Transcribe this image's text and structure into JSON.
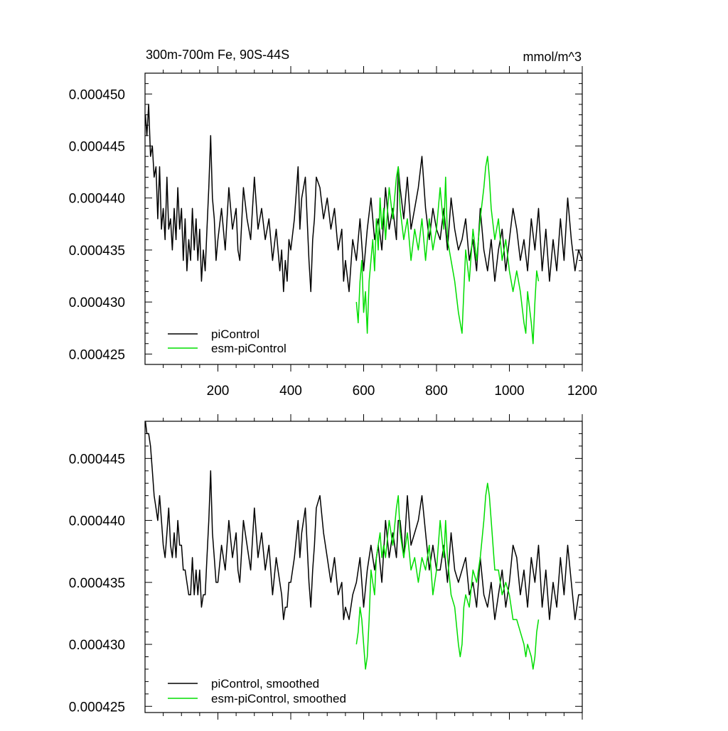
{
  "chart_data": [
    {
      "type": "line",
      "title": "300m-700m Fe, 90S-44S",
      "units_label": "mmol/m^3",
      "xlim": [
        0,
        1200
      ],
      "ylim": [
        0.000424,
        0.000452
      ],
      "x_ticks": [
        200,
        400,
        600,
        800,
        1000,
        1200
      ],
      "x_tick_labels": [
        "200",
        "400",
        "600",
        "800",
        "1000",
        "1200"
      ],
      "y_ticks": [
        0.000425,
        0.00043,
        0.000435,
        0.00044,
        0.000445,
        0.00045
      ],
      "y_tick_labels": [
        "0.000425",
        "0.000430",
        "0.000435",
        "0.000440",
        "0.000445",
        "0.000450"
      ],
      "legend_position": "bottom-left",
      "series": [
        {
          "name": "piControl",
          "color": "#000000",
          "x": [
            1,
            5,
            10,
            15,
            20,
            25,
            30,
            35,
            40,
            45,
            50,
            55,
            60,
            65,
            70,
            75,
            80,
            85,
            90,
            95,
            100,
            105,
            110,
            115,
            120,
            125,
            130,
            135,
            140,
            145,
            150,
            155,
            160,
            165,
            170,
            175,
            180,
            185,
            190,
            195,
            200,
            210,
            220,
            230,
            240,
            250,
            255,
            260,
            270,
            280,
            290,
            300,
            310,
            320,
            330,
            340,
            350,
            360,
            370,
            375,
            380,
            385,
            390,
            395,
            400,
            410,
            420,
            425,
            430,
            440,
            450,
            455,
            460,
            465,
            470,
            480,
            490,
            500,
            510,
            520,
            530,
            540,
            545,
            550,
            560,
            570,
            580,
            590,
            600,
            610,
            620,
            630,
            640,
            650,
            660,
            670,
            680,
            690,
            695,
            700,
            710,
            720,
            730,
            740,
            750,
            760,
            770,
            780,
            790,
            800,
            810,
            820,
            830,
            840,
            850,
            860,
            870,
            880,
            890,
            900,
            910,
            920,
            930,
            940,
            950,
            960,
            970,
            980,
            990,
            1000,
            1010,
            1020,
            1030,
            1040,
            1050,
            1060,
            1070,
            1080,
            1090,
            1100,
            1110,
            1120,
            1130,
            1140,
            1150,
            1160,
            1170,
            1180,
            1190,
            1200
          ],
          "y": [
            0.000448,
            0.000446,
            0.000449,
            0.000444,
            0.000445,
            0.000442,
            0.000443,
            0.000438,
            0.000443,
            0.000437,
            0.000439,
            0.000436,
            0.000442,
            0.000437,
            0.000438,
            0.000435,
            0.000439,
            0.000436,
            0.000441,
            0.000437,
            0.000439,
            0.000434,
            0.000438,
            0.000433,
            0.000436,
            0.000434,
            0.000439,
            0.000435,
            0.000438,
            0.000434,
            0.000437,
            0.000432,
            0.000435,
            0.000433,
            0.000437,
            0.000441,
            0.000446,
            0.00044,
            0.000438,
            0.000434,
            0.000436,
            0.000439,
            0.000435,
            0.000441,
            0.000437,
            0.000439,
            0.000435,
            0.000434,
            0.000441,
            0.000438,
            0.000436,
            0.000442,
            0.000437,
            0.000439,
            0.000436,
            0.000438,
            0.000434,
            0.000437,
            0.000433,
            0.000435,
            0.000431,
            0.000434,
            0.000432,
            0.000436,
            0.000435,
            0.000438,
            0.000443,
            0.000437,
            0.00044,
            0.000442,
            0.000434,
            0.000431,
            0.000436,
            0.000438,
            0.000442,
            0.000441,
            0.000438,
            0.00044,
            0.000437,
            0.000439,
            0.000435,
            0.000437,
            0.000432,
            0.000434,
            0.000431,
            0.000436,
            0.000434,
            0.000438,
            0.000433,
            0.000437,
            0.00044,
            0.000436,
            0.000438,
            0.000435,
            0.000441,
            0.000437,
            0.000439,
            0.000436,
            0.000443,
            0.000441,
            0.000438,
            0.000442,
            0.000437,
            0.000439,
            0.000441,
            0.000444,
            0.000439,
            0.000436,
            0.000439,
            0.000437,
            0.000436,
            0.000439,
            0.000435,
            0.00044,
            0.000437,
            0.000435,
            0.000436,
            0.000438,
            0.000434,
            0.000436,
            0.000433,
            0.000439,
            0.000435,
            0.000433,
            0.000436,
            0.000432,
            0.000435,
            0.000437,
            0.000433,
            0.000436,
            0.000439,
            0.000437,
            0.000434,
            0.000436,
            0.000433,
            0.000438,
            0.000435,
            0.000439,
            0.000433,
            0.000437,
            0.000432,
            0.000436,
            0.000433,
            0.000438,
            0.000434,
            0.00044,
            0.000436,
            0.000433,
            0.000435,
            0.000434
          ]
        },
        {
          "name": "esm-piControl",
          "color": "#00dd00",
          "x": [
            580,
            585,
            590,
            595,
            600,
            605,
            610,
            615,
            620,
            625,
            630,
            635,
            640,
            645,
            650,
            655,
            660,
            670,
            680,
            690,
            695,
            700,
            710,
            720,
            730,
            740,
            750,
            760,
            770,
            780,
            790,
            800,
            810,
            820,
            825,
            830,
            840,
            850,
            860,
            865,
            870,
            875,
            880,
            890,
            900,
            910,
            920,
            930,
            935,
            940,
            945,
            950,
            960,
            970,
            980,
            990,
            1000,
            1010,
            1020,
            1030,
            1040,
            1045,
            1050,
            1060,
            1065,
            1070,
            1075,
            1080
          ],
          "y": [
            0.00043,
            0.000428,
            0.000432,
            0.000434,
            0.000429,
            0.000431,
            0.000427,
            0.000432,
            0.000434,
            0.000436,
            0.000433,
            0.000438,
            0.000435,
            0.00044,
            0.000437,
            0.000439,
            0.000436,
            0.000441,
            0.000438,
            0.000442,
            0.000443,
            0.000439,
            0.000436,
            0.000438,
            0.000434,
            0.000437,
            0.000435,
            0.000438,
            0.000434,
            0.000438,
            0.000435,
            0.000437,
            0.000441,
            0.000437,
            0.000442,
            0.000436,
            0.000434,
            0.000432,
            0.000429,
            0.000428,
            0.000427,
            0.000431,
            0.000435,
            0.000432,
            0.000437,
            0.000434,
            0.000438,
            0.000441,
            0.000443,
            0.000444,
            0.000442,
            0.000439,
            0.000436,
            0.000438,
            0.000434,
            0.000436,
            0.000433,
            0.000431,
            0.000433,
            0.000431,
            0.000428,
            0.000427,
            0.000431,
            0.000428,
            0.000426,
            0.00043,
            0.000433,
            0.000432
          ]
        }
      ]
    },
    {
      "type": "line",
      "xlim": [
        0,
        1200
      ],
      "ylim": [
        0.0004245,
        0.000448
      ],
      "x_ticks": [
        200,
        400,
        600,
        800,
        1000,
        1200
      ],
      "y_ticks": [
        0.000425,
        0.00043,
        0.000435,
        0.00044,
        0.000445
      ],
      "y_tick_labels": [
        "0.000425",
        "0.000430",
        "0.000435",
        "0.000440",
        "0.000445"
      ],
      "legend_position": "bottom-left",
      "series": [
        {
          "name": "piControl, smoothed",
          "color": "#000000",
          "x": [
            1,
            5,
            10,
            15,
            20,
            25,
            30,
            35,
            40,
            45,
            50,
            55,
            60,
            65,
            70,
            75,
            80,
            85,
            90,
            95,
            100,
            105,
            110,
            115,
            120,
            125,
            130,
            135,
            140,
            145,
            150,
            155,
            160,
            165,
            170,
            175,
            180,
            185,
            190,
            195,
            200,
            210,
            220,
            230,
            240,
            250,
            255,
            260,
            270,
            280,
            290,
            300,
            310,
            320,
            330,
            340,
            350,
            360,
            370,
            375,
            380,
            385,
            390,
            395,
            400,
            410,
            420,
            425,
            430,
            440,
            450,
            455,
            460,
            465,
            470,
            480,
            490,
            500,
            510,
            520,
            530,
            540,
            545,
            550,
            560,
            570,
            580,
            590,
            600,
            610,
            620,
            630,
            640,
            650,
            660,
            670,
            680,
            690,
            695,
            700,
            710,
            720,
            730,
            740,
            750,
            760,
            770,
            780,
            790,
            800,
            810,
            820,
            830,
            840,
            850,
            860,
            870,
            880,
            890,
            900,
            910,
            920,
            930,
            940,
            950,
            960,
            970,
            980,
            990,
            1000,
            1010,
            1020,
            1030,
            1040,
            1050,
            1060,
            1070,
            1080,
            1090,
            1100,
            1110,
            1120,
            1130,
            1140,
            1150,
            1160,
            1170,
            1180,
            1190,
            1200
          ],
          "y": [
            0.000448,
            0.000447,
            0.000447,
            0.000446,
            0.000444,
            0.000442,
            0.000441,
            0.00044,
            0.000442,
            0.00044,
            0.000438,
            0.000437,
            0.000439,
            0.000441,
            0.000438,
            0.000437,
            0.000439,
            0.000437,
            0.00044,
            0.000438,
            0.000438,
            0.000436,
            0.000436,
            0.000435,
            0.000434,
            0.000434,
            0.000437,
            0.000434,
            0.000436,
            0.000434,
            0.000436,
            0.000433,
            0.000434,
            0.000434,
            0.000437,
            0.00044,
            0.000444,
            0.000439,
            0.000437,
            0.000435,
            0.000435,
            0.000438,
            0.000436,
            0.00044,
            0.000437,
            0.000439,
            0.000436,
            0.000435,
            0.00044,
            0.000438,
            0.000436,
            0.000441,
            0.000437,
            0.000439,
            0.000436,
            0.000438,
            0.000434,
            0.000437,
            0.000435,
            0.000434,
            0.000432,
            0.000433,
            0.000433,
            0.000435,
            0.000435,
            0.000437,
            0.00044,
            0.000437,
            0.000439,
            0.000441,
            0.000435,
            0.000433,
            0.000436,
            0.000438,
            0.000441,
            0.000442,
            0.000439,
            0.000437,
            0.000435,
            0.000437,
            0.000434,
            0.000435,
            0.000432,
            0.000433,
            0.000432,
            0.000434,
            0.000435,
            0.000437,
            0.000433,
            0.000436,
            0.000438,
            0.000436,
            0.000438,
            0.000435,
            0.00044,
            0.000437,
            0.000439,
            0.000437,
            0.00044,
            0.00044,
            0.000437,
            0.000442,
            0.000438,
            0.000439,
            0.00044,
            0.000442,
            0.000439,
            0.000436,
            0.000438,
            0.000436,
            0.000436,
            0.000438,
            0.000435,
            0.000439,
            0.000436,
            0.000435,
            0.000436,
            0.000437,
            0.000434,
            0.000435,
            0.000433,
            0.000437,
            0.000434,
            0.000433,
            0.000435,
            0.000432,
            0.000434,
            0.000436,
            0.000433,
            0.000435,
            0.000438,
            0.000437,
            0.000434,
            0.000436,
            0.000433,
            0.000437,
            0.000435,
            0.000438,
            0.000433,
            0.000436,
            0.000432,
            0.000435,
            0.000433,
            0.000437,
            0.000434,
            0.000438,
            0.000435,
            0.000432,
            0.000434,
            0.000434
          ]
        },
        {
          "name": "esm-piControl, smoothed",
          "color": "#00dd00",
          "x": [
            580,
            585,
            590,
            595,
            600,
            605,
            610,
            615,
            620,
            625,
            630,
            635,
            640,
            645,
            650,
            655,
            660,
            670,
            680,
            690,
            695,
            700,
            710,
            720,
            730,
            740,
            750,
            760,
            770,
            780,
            790,
            800,
            810,
            820,
            825,
            830,
            840,
            850,
            860,
            865,
            870,
            875,
            880,
            890,
            900,
            910,
            920,
            930,
            935,
            940,
            945,
            950,
            960,
            970,
            980,
            990,
            1000,
            1010,
            1020,
            1030,
            1040,
            1045,
            1050,
            1060,
            1065,
            1070,
            1075,
            1080
          ],
          "y": [
            0.00043,
            0.000431,
            0.000433,
            0.000432,
            0.00043,
            0.000428,
            0.000429,
            0.000432,
            0.000436,
            0.000435,
            0.000434,
            0.000437,
            0.000438,
            0.000439,
            0.000437,
            0.000438,
            0.000437,
            0.00044,
            0.000438,
            0.000441,
            0.000442,
            0.000439,
            0.000437,
            0.000439,
            0.000436,
            0.000437,
            0.000435,
            0.000437,
            0.000436,
            0.000438,
            0.000434,
            0.000436,
            0.00044,
            0.000437,
            0.00044,
            0.000437,
            0.000434,
            0.000433,
            0.00043,
            0.000429,
            0.00043,
            0.000433,
            0.000434,
            0.000433,
            0.000436,
            0.000435,
            0.000437,
            0.00044,
            0.000442,
            0.000443,
            0.000442,
            0.00044,
            0.000436,
            0.000436,
            0.000434,
            0.000435,
            0.000434,
            0.000432,
            0.000432,
            0.000431,
            0.00043,
            0.000429,
            0.00043,
            0.000429,
            0.000428,
            0.000429,
            0.000431,
            0.000432
          ]
        }
      ]
    }
  ]
}
